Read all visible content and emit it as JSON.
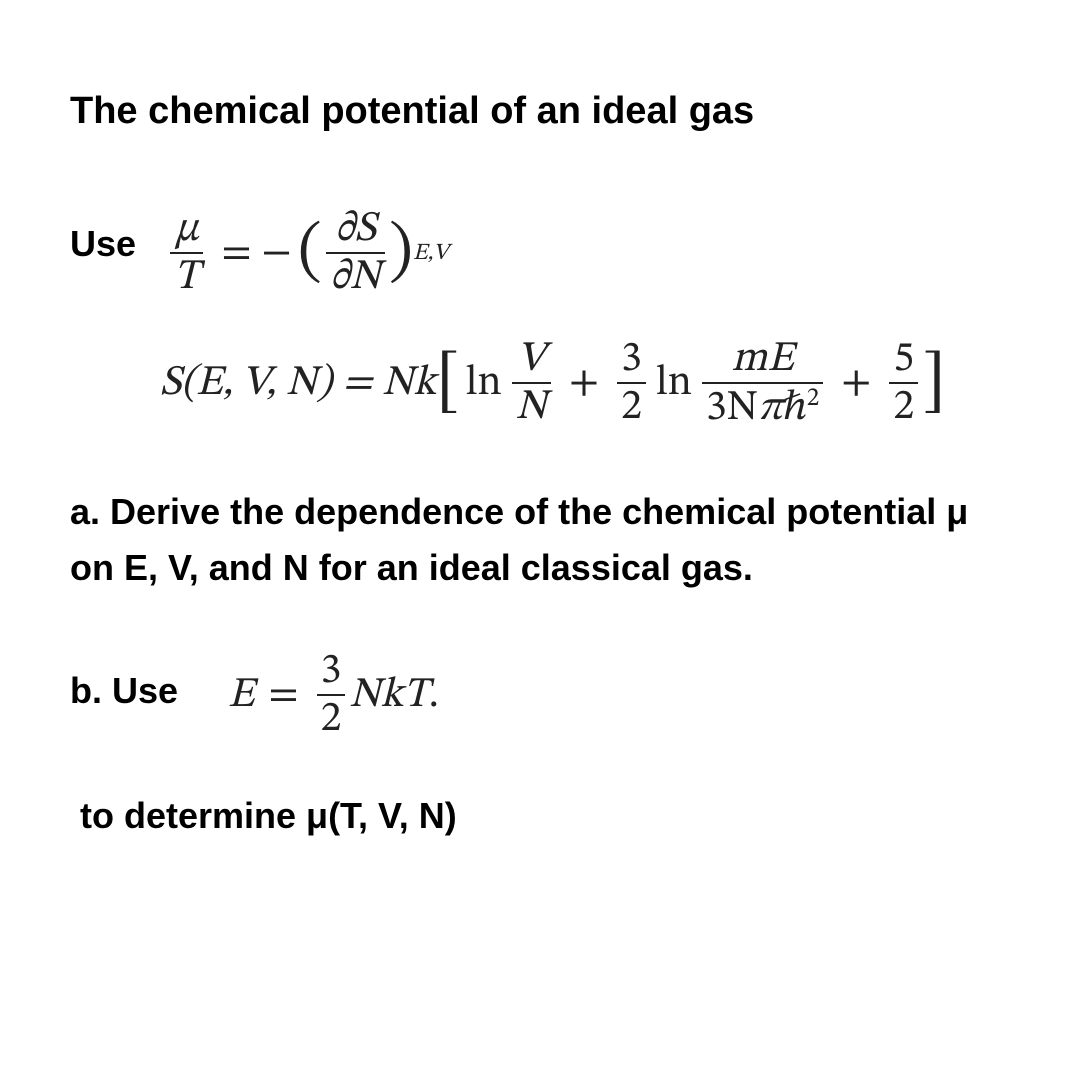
{
  "title": "The chemical potential of an ideal gas",
  "use_label": "Use",
  "eq1": {
    "lhs_num": "μ",
    "lhs_den": "T",
    "minus": "= −",
    "dS": "∂S",
    "dN": "∂N",
    "subscript": "E,V"
  },
  "eq2": {
    "lhs": "S(E, V, N) = Nk",
    "ln1": "ln",
    "VN_num": "V",
    "VN_den": "N",
    "plus1": "+",
    "threehalf_num": "3",
    "threehalf_den": "2",
    "ln2": "ln",
    "mE_num": "mE",
    "mE_den_a": "3N",
    "mE_den_pi": "π",
    "mE_den_hbar": "ℏ",
    "mE_den_sup": "2",
    "plus2": "+",
    "fivehalf_num": "5",
    "fivehalf_den": "2"
  },
  "sentence_a": "a. Derive the dependence of the chemical potential μ on E, V, and N for an ideal classical gas.",
  "b_label": "b. Use",
  "eq3": {
    "E": "E",
    "eq": "=",
    "num": "3",
    "den": "2",
    "NkT": "NkT",
    "dot": "."
  },
  "sentence_c": "to determine μ(T, V, N)",
  "style": {
    "bg": "#ffffff",
    "text": "#000000",
    "math_color": "#222222",
    "font_body": "Arial",
    "font_math": "Cambria Math",
    "title_fontsize": 38,
    "body_fontsize": 36,
    "math_fontsize": 42
  }
}
